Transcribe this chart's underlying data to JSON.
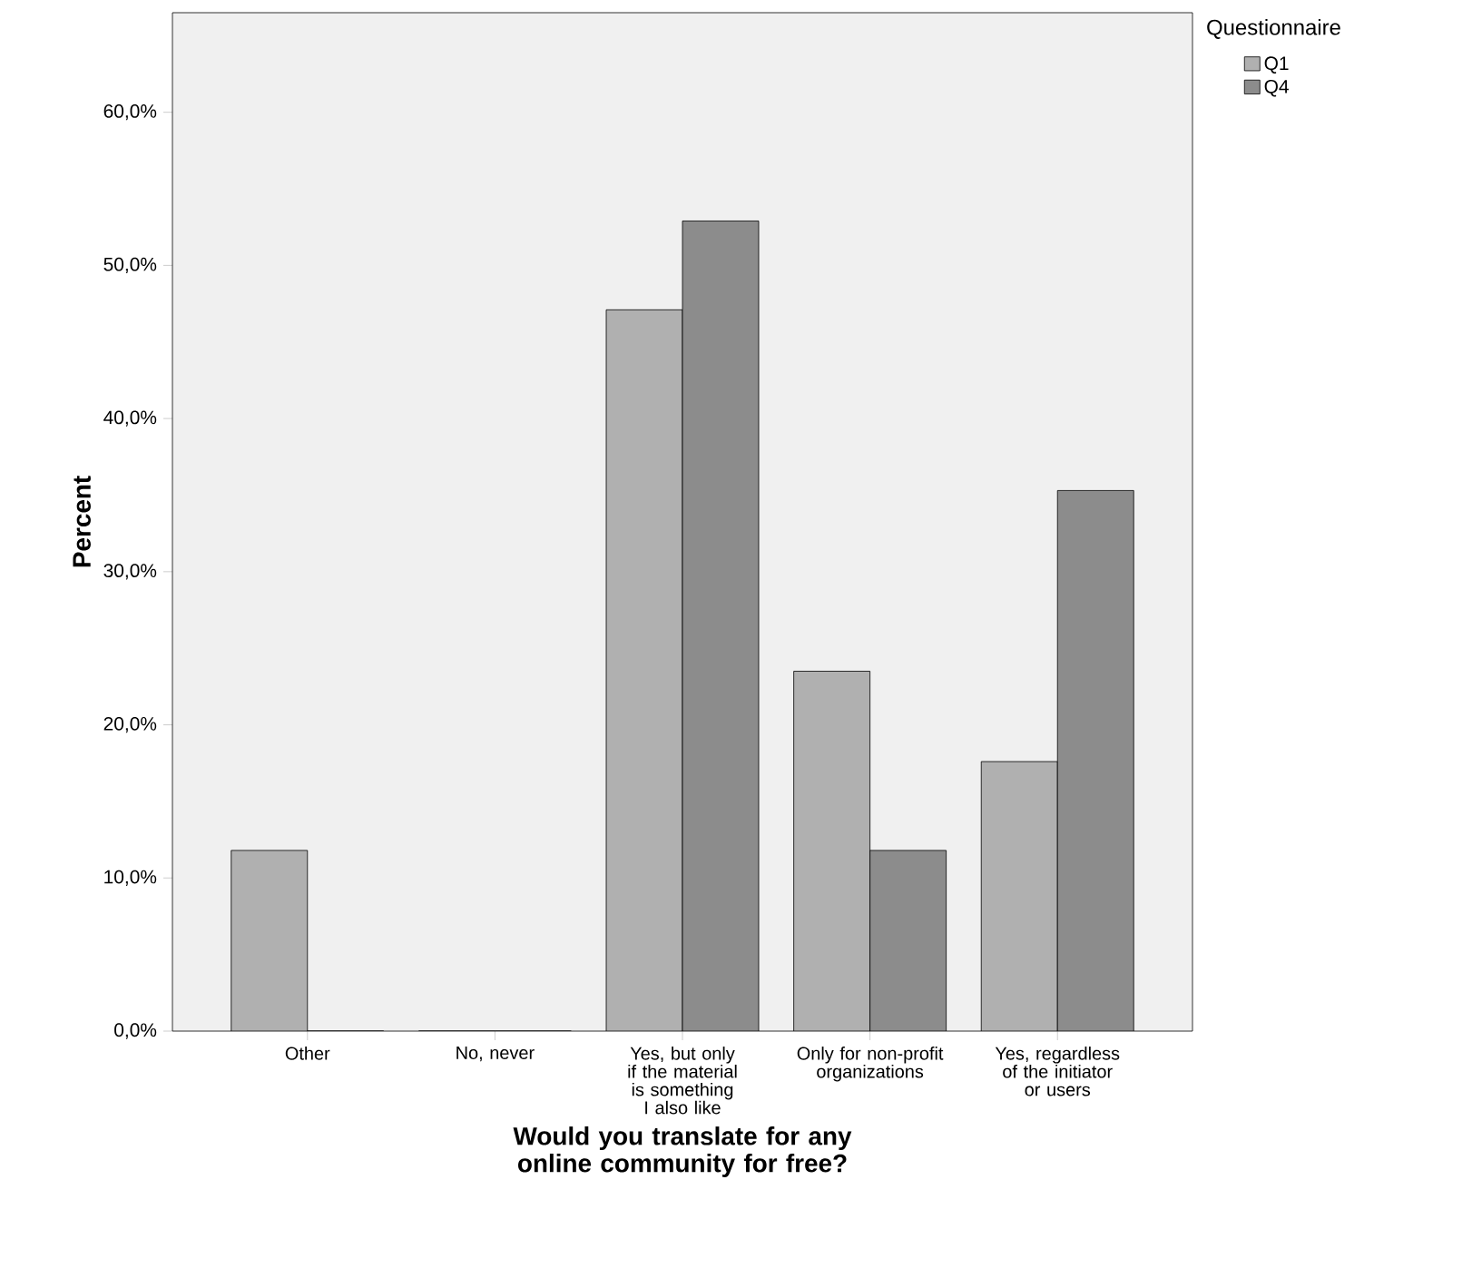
{
  "chart_data": {
    "type": "bar",
    "xlabel": "Would you translate for any online community for free?",
    "ylabel": "Percent",
    "legend_title": "Questionnaire",
    "legend": "top right",
    "grid": false,
    "categories": [
      "Other",
      "No, never",
      "Yes, but only if the material is something I also like",
      "Only for non-profit organizations",
      "Yes, regardless of the initiator or users"
    ],
    "series": [
      {
        "name": "Q1",
        "color": "#b0b0b0",
        "values": [
          11.8,
          0,
          47.1,
          23.5,
          17.6
        ]
      },
      {
        "name": "Q4",
        "color": "#8c8c8c",
        "values": [
          0,
          0,
          52.9,
          11.8,
          35.3
        ]
      }
    ],
    "ylim": [
      0,
      66.5
    ],
    "yticks": [
      {
        "value": 0,
        "label": "0,0%"
      },
      {
        "value": 10,
        "label": "10,0%"
      },
      {
        "value": 20,
        "label": "20,0%"
      },
      {
        "value": 30,
        "label": "30,0%"
      },
      {
        "value": 40,
        "label": "40,0%"
      },
      {
        "value": 50,
        "label": "50,0%"
      },
      {
        "value": 60,
        "label": "60,0%"
      }
    ]
  }
}
